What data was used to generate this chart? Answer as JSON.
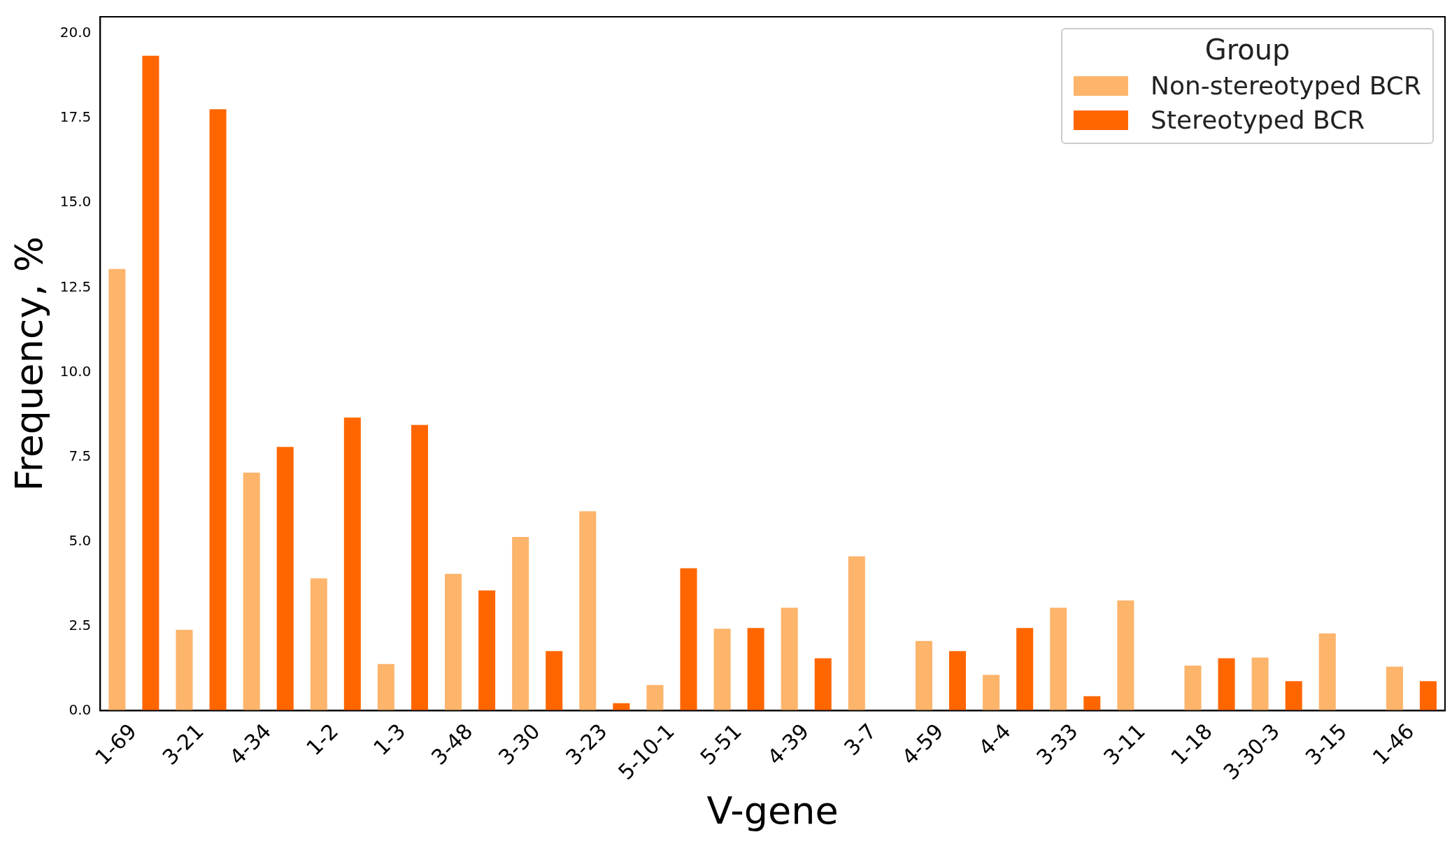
{
  "chart_data": {
    "type": "bar",
    "xlabel": "V-gene",
    "ylabel": "Frequency, %",
    "legend_title": "Group",
    "legend": "top right",
    "grid": false,
    "categories": [
      "1-69",
      "3-21",
      "4-34",
      "1-2",
      "1-3",
      "3-48",
      "3-30",
      "3-23",
      "5-10-1",
      "5-51",
      "4-39",
      "3-7",
      "4-59",
      "4-4",
      "3-33",
      "3-11",
      "1-18",
      "3-30-3",
      "3-15",
      "1-46"
    ],
    "series": [
      {
        "name": "Non-stereotyped BCR",
        "color": "#fdb46b",
        "values": [
          13.05,
          2.39,
          7.03,
          3.91,
          1.38,
          4.04,
          5.13,
          5.89,
          0.76,
          2.42,
          3.04,
          4.56,
          2.06,
          1.06,
          3.04,
          3.26,
          1.33,
          1.57,
          2.28,
          1.3
        ]
      },
      {
        "name": "Stereotyped BCR",
        "color": "#ff6600",
        "values": [
          19.35,
          17.77,
          7.79,
          8.66,
          8.44,
          3.55,
          1.76,
          0.22,
          4.21,
          2.44,
          1.55,
          0,
          1.76,
          2.44,
          0.43,
          0,
          1.55,
          0.87,
          0,
          0.87
        ]
      }
    ],
    "ylim": [
      0,
      20.5
    ],
    "yticks": [
      {
        "value": 0,
        "label": "0.0"
      },
      {
        "value": 2.5,
        "label": "2.5"
      },
      {
        "value": 5,
        "label": "5.0"
      },
      {
        "value": 7.5,
        "label": "7.5"
      },
      {
        "value": 10,
        "label": "10.0"
      },
      {
        "value": 12.5,
        "label": "12.5"
      },
      {
        "value": 15,
        "label": "15.0"
      },
      {
        "value": 17.5,
        "label": "17.5"
      },
      {
        "value": 20,
        "label": "20.0"
      }
    ]
  }
}
